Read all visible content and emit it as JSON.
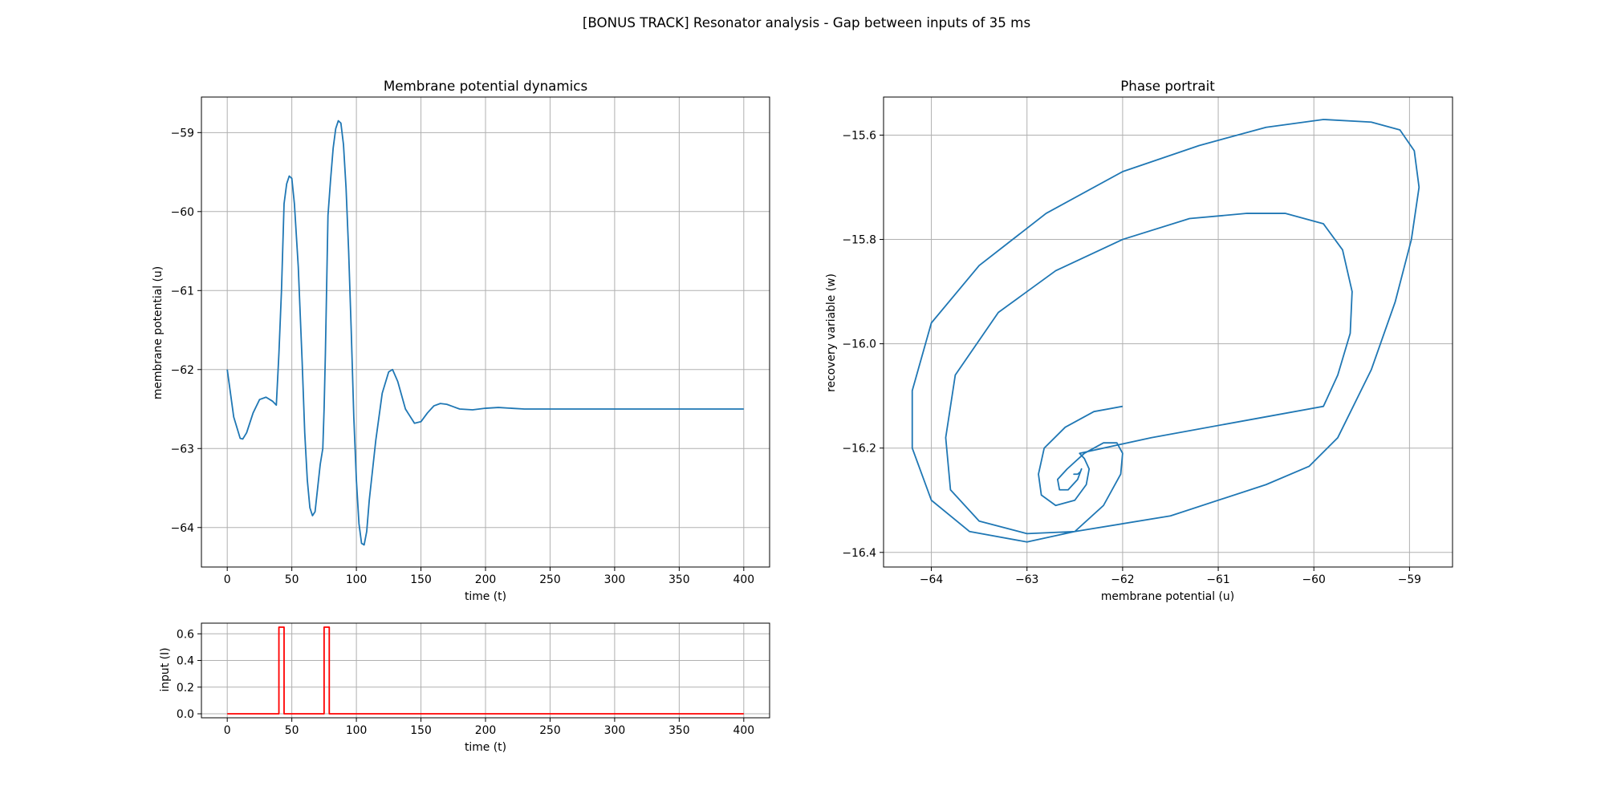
{
  "figure_title": "[BONUS TRACK] Resonator analysis - Gap between inputs of 35 ms",
  "colors": {
    "trace": "#1f77b4",
    "input": "#ff0000",
    "grid": "#b0b0b0"
  },
  "chart_data": [
    {
      "id": "membrane",
      "type": "line",
      "title": "Membrane potential dynamics",
      "xlabel": "time (t)",
      "ylabel": "membrane potential (u)",
      "xlim": [
        -20,
        420
      ],
      "ylim": [
        -64.5,
        -58.55
      ],
      "xticks": [
        0,
        50,
        100,
        150,
        200,
        250,
        300,
        350,
        400
      ],
      "yticks": [
        -64,
        -63,
        -62,
        -61,
        -60,
        -59
      ],
      "grid": true,
      "series": [
        {
          "color": "#1f77b4",
          "x": [
            0,
            5,
            10,
            12,
            15,
            20,
            25,
            30,
            35,
            38,
            40,
            42,
            44,
            46,
            48,
            50,
            52,
            55,
            58,
            60,
            62,
            64,
            66,
            68,
            70,
            72,
            74,
            75,
            76,
            78,
            80,
            82,
            84,
            86,
            88,
            90,
            92,
            94,
            96,
            98,
            100,
            102,
            104,
            106,
            108,
            110,
            115,
            120,
            125,
            128,
            132,
            138,
            145,
            150,
            155,
            160,
            165,
            170,
            175,
            180,
            190,
            200,
            210,
            220,
            230,
            250,
            300,
            350,
            400
          ],
          "y": [
            -62.0,
            -62.6,
            -62.87,
            -62.88,
            -62.8,
            -62.55,
            -62.38,
            -62.35,
            -62.4,
            -62.45,
            -61.8,
            -61.0,
            -59.9,
            -59.65,
            -59.55,
            -59.58,
            -59.9,
            -60.7,
            -61.9,
            -62.8,
            -63.4,
            -63.75,
            -63.85,
            -63.8,
            -63.5,
            -63.2,
            -63.0,
            -62.5,
            -61.8,
            -60.05,
            -59.6,
            -59.2,
            -58.95,
            -58.85,
            -58.88,
            -59.15,
            -59.7,
            -60.5,
            -61.5,
            -62.6,
            -63.4,
            -63.95,
            -64.2,
            -64.22,
            -64.05,
            -63.65,
            -62.9,
            -62.3,
            -62.03,
            -62.0,
            -62.15,
            -62.5,
            -62.68,
            -62.66,
            -62.55,
            -62.46,
            -62.43,
            -62.44,
            -62.47,
            -62.5,
            -62.51,
            -62.49,
            -62.48,
            -62.49,
            -62.5,
            -62.5,
            -62.5,
            -62.5,
            -62.5
          ]
        }
      ]
    },
    {
      "id": "input",
      "type": "line",
      "title": "",
      "xlabel": "time (t)",
      "ylabel": "input (I)",
      "xlim": [
        -20,
        420
      ],
      "ylim": [
        -0.03,
        0.68
      ],
      "xticks": [
        0,
        50,
        100,
        150,
        200,
        250,
        300,
        350,
        400
      ],
      "yticks": [
        0.0,
        0.2,
        0.4,
        0.6
      ],
      "grid": true,
      "series": [
        {
          "color": "#ff0000",
          "x": [
            0,
            40,
            40,
            44,
            44,
            75,
            75,
            79,
            79,
            400
          ],
          "y": [
            0,
            0,
            0.65,
            0.65,
            0,
            0,
            0.65,
            0.65,
            0,
            0
          ]
        }
      ]
    },
    {
      "id": "phase",
      "type": "line",
      "title": "Phase portrait",
      "xlabel": "membrane potential (u)",
      "ylabel": "recovery variable (w)",
      "xlim": [
        -64.5,
        -58.55
      ],
      "ylim": [
        -16.428,
        -15.527
      ],
      "xticks": [
        -64,
        -63,
        -62,
        -61,
        -60,
        -59
      ],
      "yticks": [
        -16.4,
        -16.2,
        -16.0,
        -15.8,
        -15.6
      ],
      "grid": true,
      "series": [
        {
          "color": "#1f77b4",
          "x": [
            -62.0,
            -62.3,
            -62.6,
            -62.82,
            -62.88,
            -62.85,
            -62.7,
            -62.5,
            -62.38,
            -62.35,
            -62.4,
            -62.45,
            -61.7,
            -60.5,
            -59.9,
            -59.75,
            -59.62,
            -59.6,
            -59.7,
            -59.9,
            -60.3,
            -60.7,
            -61.3,
            -62.0,
            -62.7,
            -63.3,
            -63.75,
            -63.85,
            -63.8,
            -63.5,
            -63.0,
            -62.5,
            -61.5,
            -60.5,
            -60.05,
            -59.75,
            -59.4,
            -59.15,
            -58.98,
            -58.9,
            -58.95,
            -59.1,
            -59.4,
            -59.9,
            -60.5,
            -61.2,
            -62.0,
            -62.8,
            -63.5,
            -64.0,
            -64.2,
            -64.2,
            -64.0,
            -63.6,
            -63.0,
            -62.5,
            -62.2,
            -62.02,
            -62.0,
            -62.06,
            -62.2,
            -62.4,
            -62.58,
            -62.68,
            -62.66,
            -62.57,
            -62.47,
            -62.43,
            -62.44,
            -62.47,
            -62.5,
            -62.51,
            -62.5
          ],
          "y": [
            -16.12,
            -16.13,
            -16.16,
            -16.2,
            -16.25,
            -16.29,
            -16.31,
            -16.3,
            -16.27,
            -16.24,
            -16.22,
            -16.21,
            -16.18,
            -16.14,
            -16.12,
            -16.06,
            -15.98,
            -15.9,
            -15.82,
            -15.77,
            -15.75,
            -15.75,
            -15.76,
            -15.8,
            -15.86,
            -15.94,
            -16.06,
            -16.18,
            -16.28,
            -16.34,
            -16.364,
            -16.36,
            -16.33,
            -16.27,
            -16.235,
            -16.18,
            -16.05,
            -15.92,
            -15.8,
            -15.7,
            -15.63,
            -15.59,
            -15.575,
            -15.57,
            -15.585,
            -15.62,
            -15.67,
            -15.75,
            -15.85,
            -15.96,
            -16.09,
            -16.2,
            -16.3,
            -16.36,
            -16.38,
            -16.36,
            -16.31,
            -16.25,
            -16.21,
            -16.19,
            -16.19,
            -16.21,
            -16.24,
            -16.26,
            -16.28,
            -16.28,
            -16.26,
            -16.24,
            -16.245,
            -16.25,
            -16.25,
            -16.25,
            -16.25
          ]
        }
      ]
    }
  ]
}
